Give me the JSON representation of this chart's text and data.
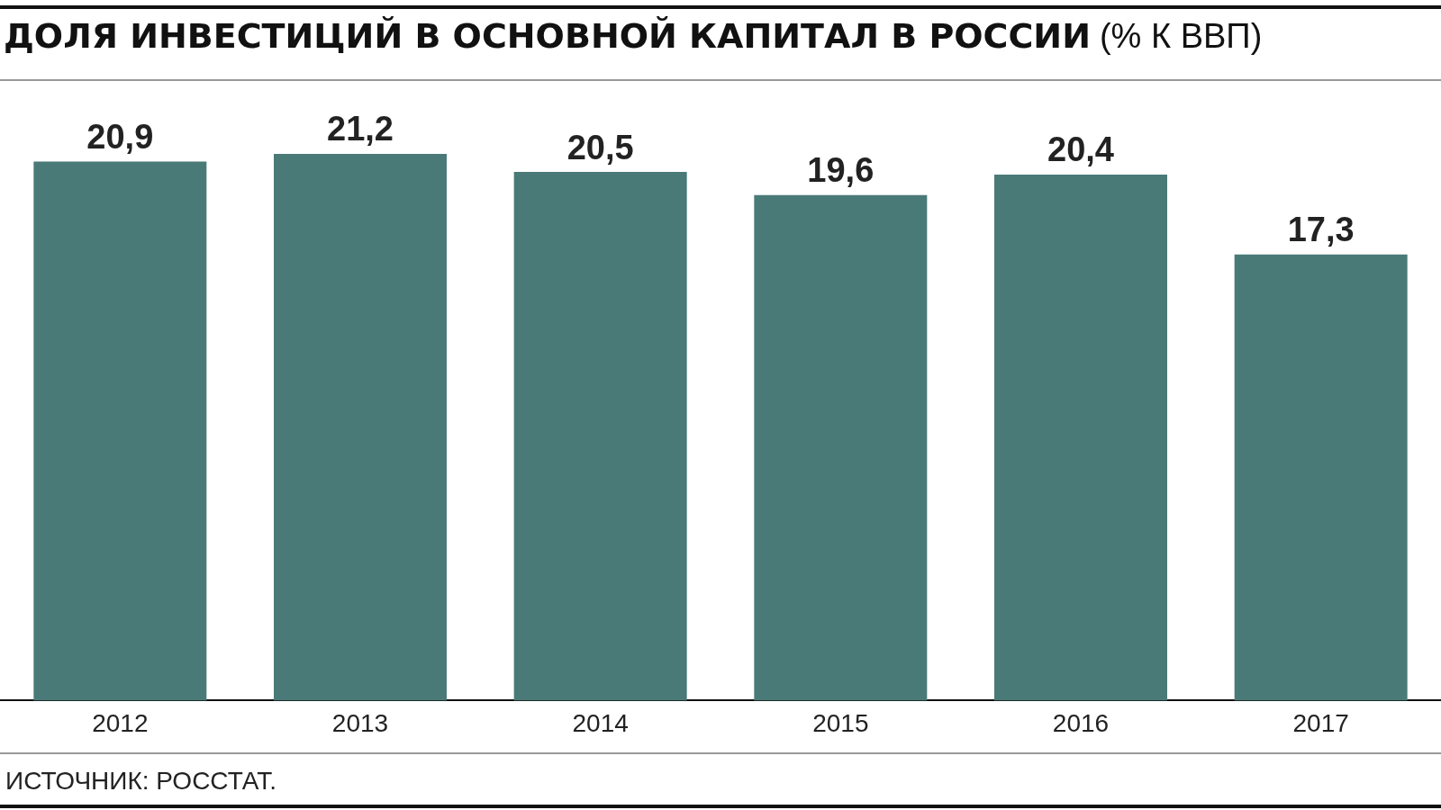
{
  "chart_data": {
    "type": "bar",
    "title": "ДОЛЯ ИНВЕСТИЦИЙ В ОСНОВНОЙ КАПИТАЛ В РОССИИ",
    "subtitle": "(% К ВВП)",
    "categories": [
      "2012",
      "2013",
      "2014",
      "2015",
      "2016",
      "2017"
    ],
    "values": [
      20.9,
      21.2,
      20.5,
      19.6,
      20.4,
      17.3
    ],
    "value_labels": [
      "20,9",
      "21,2",
      "20,5",
      "19,6",
      "20,4",
      "17,3"
    ],
    "color": "#4a7a78",
    "annotations": [
      "ИСТОЧНИК: РОССТАТ."
    ]
  }
}
